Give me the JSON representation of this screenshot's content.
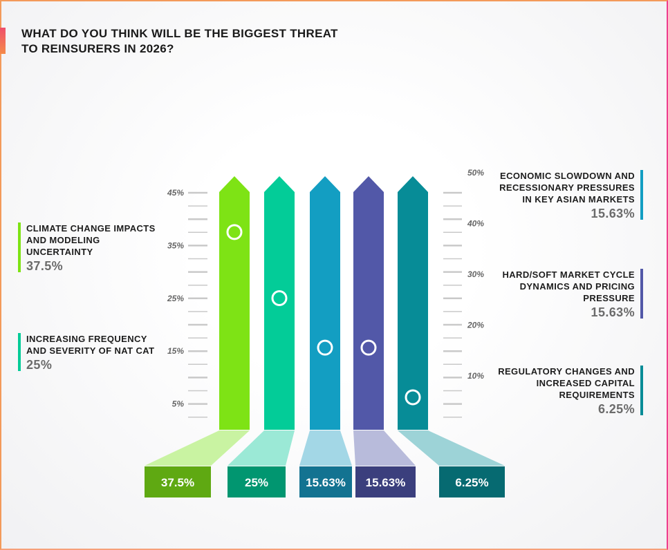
{
  "title": "WHAT DO YOU THINK WILL BE THE BIGGEST THREAT TO REINSURERS IN 2026?",
  "chart_data": {
    "type": "bar",
    "title": "WHAT DO YOU THINK WILL BE THE BIGGEST THREAT TO REINSURERS IN 2026?",
    "categories": [
      "CLIMATE CHANGE IMPACTS AND MODELING UNCERTAINTY",
      "INCREASING FREQUENCY AND SEVERITY OF NAT CAT",
      "ECONOMIC SLOWDOWN AND RECESSIONARY PRESSURES IN KEY ASIAN MARKETS",
      "HARD/SOFT MARKET CYCLE DYNAMICS AND PRICING PRESSURE",
      "REGULATORY CHANGES AND INCREASED CAPITAL REQUIREMENTS"
    ],
    "values": [
      37.5,
      25,
      15.63,
      15.63,
      6.25
    ],
    "value_labels": [
      "37.5%",
      "25%",
      "15.63%",
      "15.63%",
      "6.25%"
    ],
    "colors": [
      "#7ee315",
      "#03cc98",
      "#139ec2",
      "#5258a8",
      "#078c97"
    ],
    "light_colors": [
      "#c9f3a2",
      "#9be9d6",
      "#a3d7e6",
      "#b8bbdb",
      "#9dd3d7"
    ],
    "dark_colors": [
      "#5fa912",
      "#019670",
      "#137391",
      "#3b3f7d",
      "#066a71"
    ],
    "left_ticks": [
      "45%",
      "35%",
      "25%",
      "15%",
      "5%"
    ],
    "right_ticks": [
      "50%",
      "40%",
      "30%",
      "20%",
      "10%"
    ],
    "ylim": [
      0,
      50
    ]
  }
}
